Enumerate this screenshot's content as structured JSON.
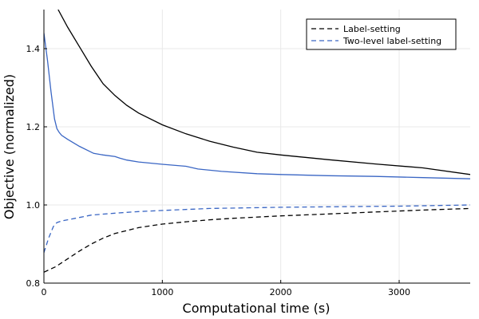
{
  "chart_data": {
    "type": "line",
    "xlabel": "Computational time (s)",
    "ylabel": "Objective (normalized)",
    "xlim": [
      0,
      3600
    ],
    "ylim": [
      0.8,
      1.5
    ],
    "x_ticks": [
      0,
      1000,
      2000,
      3000
    ],
    "x_tick_labels": [
      "0",
      "1000",
      "2000",
      "3000"
    ],
    "y_ticks": [
      0.8,
      1.0,
      1.2,
      1.4
    ],
    "y_tick_labels": [
      "0.8",
      "1.0",
      "1.2",
      "1.4"
    ],
    "grid": true,
    "legend_position": "top-right",
    "legend": [
      {
        "label": "Label-setting",
        "color": "#000000",
        "dash": "dashed"
      },
      {
        "label": "Two-level label-setting",
        "color": "#3a66c4",
        "dash": "dashed"
      }
    ],
    "series": [
      {
        "name": "Label-setting",
        "bound": "upper",
        "color": "#000000",
        "dash": "solid",
        "x": [
          120,
          200,
          300,
          400,
          500,
          600,
          700,
          800,
          1000,
          1200,
          1400,
          1600,
          1800,
          2000,
          2400,
          2800,
          3200,
          3600
        ],
        "y": [
          1.5,
          1.455,
          1.405,
          1.355,
          1.31,
          1.28,
          1.255,
          1.235,
          1.205,
          1.182,
          1.163,
          1.148,
          1.135,
          1.128,
          1.116,
          1.105,
          1.095,
          1.078
        ]
      },
      {
        "name": "Label-setting",
        "bound": "lower",
        "color": "#000000",
        "dash": "dashed",
        "x": [
          0,
          100,
          200,
          300,
          400,
          500,
          600,
          800,
          1000,
          1200,
          1400,
          1600,
          2000,
          2400,
          2800,
          3200,
          3600
        ],
        "y": [
          0.828,
          0.842,
          0.862,
          0.882,
          0.9,
          0.915,
          0.927,
          0.942,
          0.951,
          0.957,
          0.962,
          0.966,
          0.972,
          0.977,
          0.982,
          0.987,
          0.991
        ]
      },
      {
        "name": "Two-level label-setting",
        "bound": "upper",
        "color": "#3a66c4",
        "dash": "solid",
        "x": [
          0,
          30,
          60,
          90,
          110,
          130,
          150,
          200,
          300,
          420,
          500,
          600,
          640,
          700,
          800,
          1000,
          1200,
          1300,
          1500,
          1800,
          2000,
          2400,
          2800,
          3200,
          3600
        ],
        "y": [
          1.44,
          1.37,
          1.29,
          1.22,
          1.195,
          1.185,
          1.178,
          1.168,
          1.15,
          1.132,
          1.128,
          1.124,
          1.12,
          1.115,
          1.11,
          1.104,
          1.099,
          1.092,
          1.086,
          1.08,
          1.078,
          1.075,
          1.073,
          1.07,
          1.067
        ]
      },
      {
        "name": "Two-level label-setting",
        "bound": "lower",
        "color": "#3a66c4",
        "dash": "dashed",
        "x": [
          0,
          40,
          80,
          110,
          150,
          200,
          300,
          400,
          600,
          800,
          1000,
          1400,
          2000,
          2600,
          3000,
          3600
        ],
        "y": [
          0.878,
          0.915,
          0.945,
          0.955,
          0.959,
          0.962,
          0.968,
          0.974,
          0.979,
          0.983,
          0.986,
          0.991,
          0.994,
          0.996,
          0.997,
          1.0
        ]
      }
    ]
  }
}
